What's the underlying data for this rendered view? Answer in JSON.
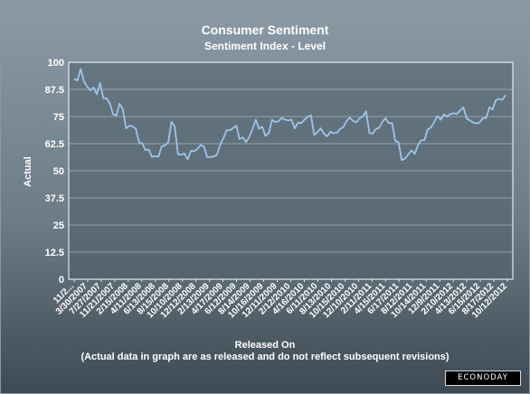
{
  "chart_data": {
    "type": "line",
    "title": "Consumer Sentiment",
    "subtitle": "Sentiment Index - Level",
    "ylabel": "Actual",
    "xlabel": "Released On",
    "note": "(Actual data in graph are as released and do not reflect subsequent revisions)",
    "ylim": [
      0,
      100
    ],
    "y_ticks": [
      "0",
      "12.5",
      "25",
      "37.5",
      "50",
      "62.5",
      "75",
      "87.5",
      "100"
    ],
    "x_tick_labels": [
      "11/2...",
      "3/30/2007",
      "7/27/2007",
      "11/21/2007",
      "2/15/2008",
      "4/11/2008",
      "6/13/2008",
      "8/15/2008",
      "10/10/2008",
      "12/12/2008",
      "2/13/2009",
      "4/17/2009",
      "6/12/2009",
      "8/14/2009",
      "10/16/2009",
      "12/11/2009",
      "2/12/2010",
      "4/16/2010",
      "6/11/2010",
      "8/13/2010",
      "10/15/2010",
      "12/10/2010",
      "2/11/2011",
      "4/15/2011",
      "6/17/2011",
      "8/12/2011",
      "10/14/2011",
      "12/9/2011",
      "2/10/2012",
      "4/13/2012",
      "6/15/2012",
      "8/17/2012",
      "10/12/2012"
    ],
    "grid": true,
    "line_color": "#9ec4ea",
    "series": [
      {
        "values": [
          92.3,
          91.7,
          96.9,
          91.3,
          88.8,
          87.1,
          88.4,
          85.3,
          90.4,
          83.4,
          83.4,
          80.9,
          76.1,
          75.5,
          80.9,
          78.4,
          69.6,
          70.8,
          70.5,
          69.5,
          63.2,
          62.6,
          59.5,
          59.8,
          56.4,
          56.7,
          56.6,
          61.2,
          61.7,
          63.1,
          72.6,
          70.3,
          57.6,
          57.5,
          57.9,
          55.3,
          59.2,
          59.0,
          60.1,
          61.9,
          61.2,
          56.3,
          56.4,
          56.6,
          57.3,
          61.9,
          65.1,
          68.7,
          68.7,
          69.7,
          70.8,
          64.6,
          65.4,
          63.2,
          65.7,
          69.4,
          73.5,
          69.4,
          70.3,
          66.0,
          67.4,
          73.5,
          72.5,
          72.8,
          74.4,
          73.6,
          73.2,
          73.6,
          69.6,
          72.2,
          72.0,
          73.6,
          74.9,
          75.6,
          66.5,
          67.8,
          69.6,
          67.1,
          65.9,
          68.0,
          67.3,
          67.5,
          69.3,
          70.2,
          73.0,
          74.5,
          73.0,
          72.3,
          74.2,
          75.1,
          77.5,
          67.5,
          67.1,
          69.2,
          69.8,
          72.5,
          74.3,
          72.0,
          72.0,
          63.7,
          63.2,
          54.9,
          55.7,
          57.5,
          59.4,
          57.8,
          61.9,
          64.1,
          64.1,
          69.1,
          69.9,
          72.5,
          75.3,
          73.5,
          76.0,
          75.0,
          76.2,
          76.5,
          76.3,
          77.8,
          79.3,
          74.1,
          73.2,
          72.3,
          71.8,
          72.3,
          74.3,
          74.3,
          79.2,
          78.3,
          82.6,
          83.1,
          82.7,
          84.9
        ]
      }
    ]
  },
  "brand": {
    "logo_text": "ECONODAY"
  }
}
